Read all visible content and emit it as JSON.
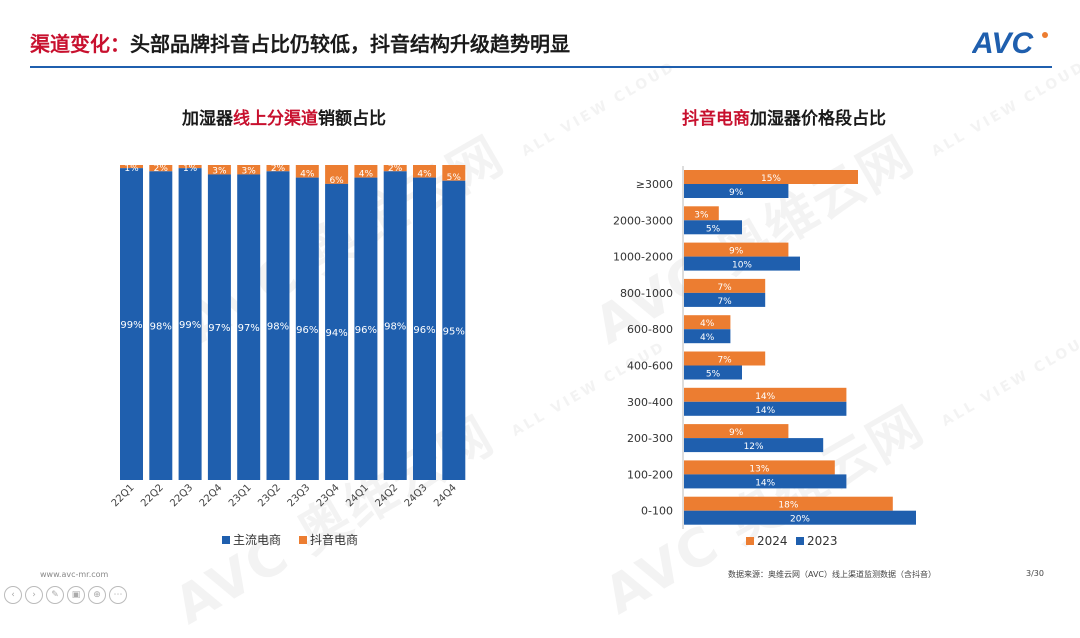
{
  "header": {
    "title_highlight": "渠道变化：",
    "title_rest": "头部品牌抖音占比仍较低，抖音结构升级趋势明显"
  },
  "logo": {
    "text": "AVC"
  },
  "watermark": {
    "text": "AVC 奥维云网",
    "sub": "ALL VIEW CLOUD"
  },
  "footer": {
    "url": "www.avc-mr.com",
    "source": "数据来源：奥维云网（AVC）线上渠道监测数据（含抖音）",
    "page": "3/30"
  },
  "colors": {
    "blue": "#1f5fae",
    "orange": "#ec7d31",
    "red": "#c8102e"
  },
  "chart_data": [
    {
      "type": "bar",
      "stacked": true,
      "percent": true,
      "title_parts": [
        "加湿器",
        "线上分渠道",
        "销额占比"
      ],
      "categories": [
        "22Q1",
        "22Q2",
        "22Q3",
        "22Q4",
        "23Q1",
        "23Q2",
        "23Q3",
        "23Q4",
        "24Q1",
        "24Q2",
        "24Q3",
        "24Q4"
      ],
      "series": [
        {
          "name": "主流电商",
          "color": "#1f5fae",
          "values": [
            99,
            98,
            99,
            97,
            97,
            98,
            96,
            94,
            96,
            98,
            96,
            95
          ]
        },
        {
          "name": "抖音电商",
          "color": "#ec7d31",
          "values": [
            1,
            2,
            1,
            3,
            3,
            2,
            4,
            6,
            4,
            2,
            4,
            5
          ]
        }
      ],
      "ylim": [
        0,
        100
      ],
      "legend": "bottom"
    },
    {
      "type": "bar",
      "orientation": "horizontal",
      "title_parts": [
        "抖音电商",
        "加湿器价格段占比"
      ],
      "categories": [
        "≥3000",
        "2000-3000",
        "1000-2000",
        "800-1000",
        "600-800",
        "400-600",
        "300-400",
        "200-300",
        "100-200",
        "0-100"
      ],
      "series": [
        {
          "name": "2024",
          "color": "#ec7d31",
          "values": [
            15,
            3,
            9,
            7,
            4,
            7,
            14,
            9,
            13,
            18
          ]
        },
        {
          "name": "2023",
          "color": "#1f5fae",
          "values": [
            9,
            5,
            10,
            7,
            4,
            5,
            14,
            12,
            14,
            20
          ]
        }
      ],
      "legend": "bottom"
    }
  ]
}
